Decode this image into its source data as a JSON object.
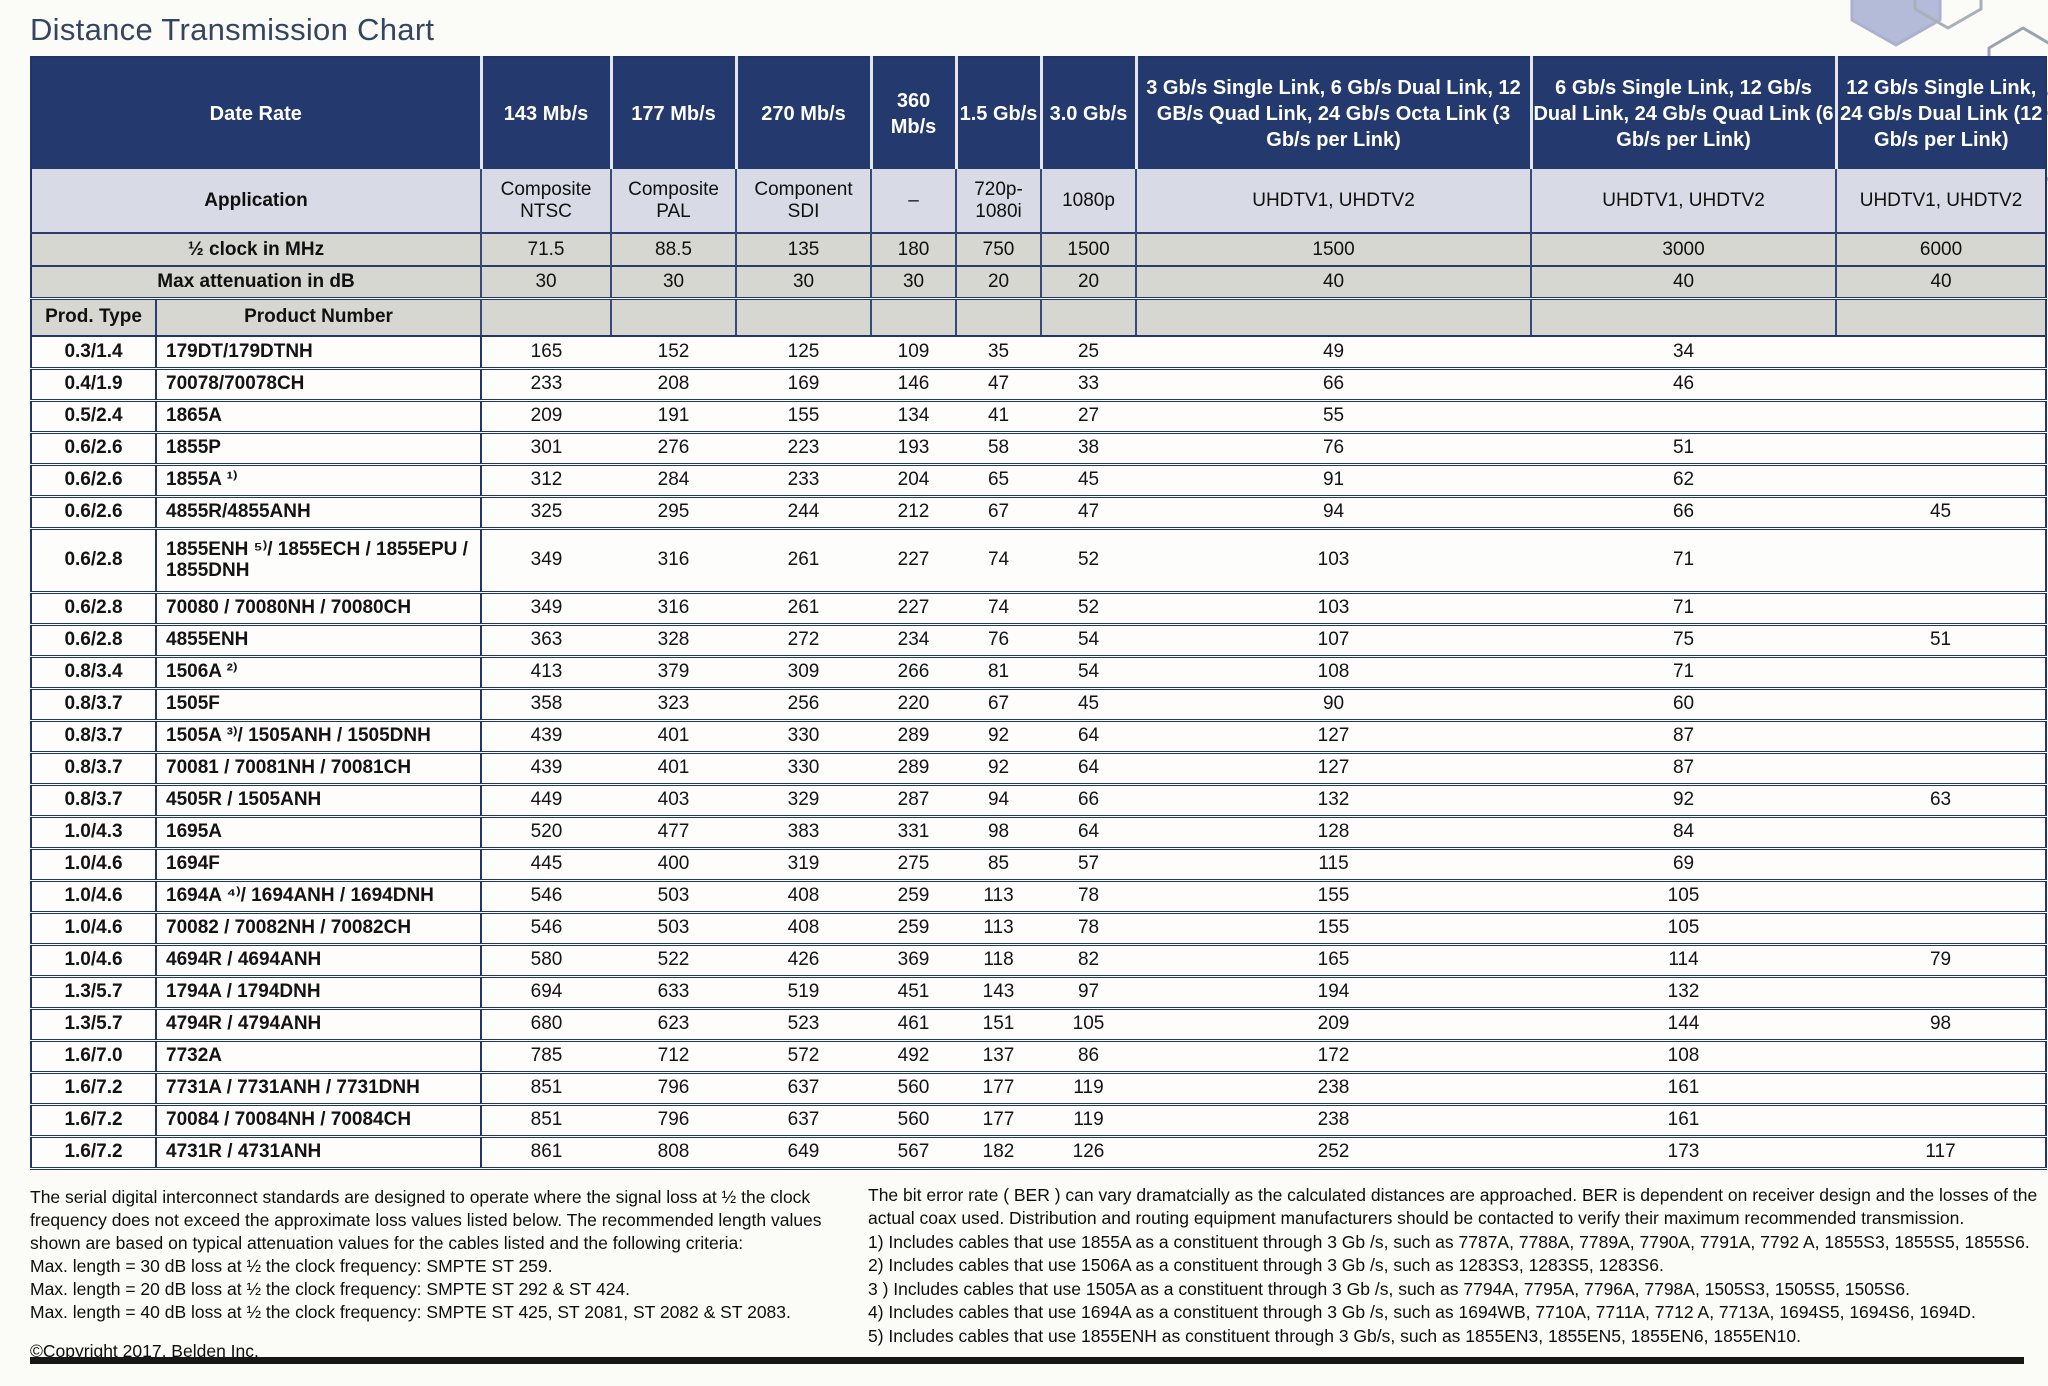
{
  "title": "Distance Transmission Chart",
  "table": {
    "header": {
      "date_rate_label": "Date Rate",
      "application_label": "Application",
      "half_clock_label": "½ clock in MHz",
      "max_attenuation_label": "Max attenuation in dB",
      "prod_type_label": "Prod. Type",
      "product_number_label": "Product Number",
      "rate_cols": [
        "143 Mb/s",
        "177 Mb/s",
        "270 Mb/s",
        "360 Mb/s",
        "1.5 Gb/s",
        "3.0 Gb/s",
        "3 Gb/s Single Link, 6 Gb/s Dual Link, 12 GB/s Quad Link, 24 Gb/s Octa Link (3 Gb/s per Link)",
        "6 Gb/s Single Link, 12 Gb/s Dual Link, 24 Gb/s Quad Link (6 Gb/s per Link)",
        "12 Gb/s Single Link, 24 Gb/s Dual Link (12 Gb/s per Link)"
      ],
      "applications": [
        "Composite NTSC",
        "Composite PAL",
        "Component SDI",
        "–",
        "720p-1080i",
        "1080p",
        "UHDTV1, UHDTV2",
        "UHDTV1, UHDTV2",
        "UHDTV1, UHDTV2"
      ],
      "half_clock": [
        "71.5",
        "88.5",
        "135",
        "180",
        "750",
        "1500",
        "1500",
        "3000",
        "6000"
      ],
      "max_attenuation": [
        "30",
        "30",
        "30",
        "30",
        "20",
        "20",
        "40",
        "40",
        "40"
      ]
    },
    "rows": [
      {
        "type": "0.3/1.4",
        "product": "179DT/179DTNH",
        "values": [
          "165",
          "152",
          "125",
          "109",
          "35",
          "25",
          "49",
          "34",
          ""
        ]
      },
      {
        "type": "0.4/1.9",
        "product": "70078/70078CH",
        "values": [
          "233",
          "208",
          "169",
          "146",
          "47",
          "33",
          "66",
          "46",
          ""
        ]
      },
      {
        "type": "0.5/2.4",
        "product": "1865A",
        "values": [
          "209",
          "191",
          "155",
          "134",
          "41",
          "27",
          "55",
          "",
          ""
        ]
      },
      {
        "type": "0.6/2.6",
        "product": "1855P",
        "values": [
          "301",
          "276",
          "223",
          "193",
          "58",
          "38",
          "76",
          "51",
          ""
        ]
      },
      {
        "type": "0.6/2.6",
        "product": "1855A ¹⁾",
        "values": [
          "312",
          "284",
          "233",
          "204",
          "65",
          "45",
          "91",
          "62",
          ""
        ]
      },
      {
        "type": "0.6/2.6",
        "product": "4855R/4855ANH",
        "values": [
          "325",
          "295",
          "244",
          "212",
          "67",
          "47",
          "94",
          "66",
          "45"
        ]
      },
      {
        "type": "0.6/2.8",
        "product": "1855ENH ⁵⁾/ 1855ECH / 1855EPU / 1855DNH",
        "tall": true,
        "values": [
          "349",
          "316",
          "261",
          "227",
          "74",
          "52",
          "103",
          "71",
          ""
        ]
      },
      {
        "type": "0.6/2.8",
        "product": "70080 / 70080NH / 70080CH",
        "values": [
          "349",
          "316",
          "261",
          "227",
          "74",
          "52",
          "103",
          "71",
          ""
        ]
      },
      {
        "type": "0.6/2.8",
        "product": "4855ENH",
        "values": [
          "363",
          "328",
          "272",
          "234",
          "76",
          "54",
          "107",
          "75",
          "51"
        ]
      },
      {
        "type": "0.8/3.4",
        "product": "1506A ²⁾",
        "values": [
          "413",
          "379",
          "309",
          "266",
          "81",
          "54",
          "108",
          "71",
          ""
        ]
      },
      {
        "type": "0.8/3.7",
        "product": "1505F",
        "values": [
          "358",
          "323",
          "256",
          "220",
          "67",
          "45",
          "90",
          "60",
          ""
        ]
      },
      {
        "type": "0.8/3.7",
        "product": "1505A ³⁾/ 1505ANH / 1505DNH",
        "values": [
          "439",
          "401",
          "330",
          "289",
          "92",
          "64",
          "127",
          "87",
          ""
        ]
      },
      {
        "type": "0.8/3.7",
        "product": "70081 / 70081NH / 70081CH",
        "values": [
          "439",
          "401",
          "330",
          "289",
          "92",
          "64",
          "127",
          "87",
          ""
        ]
      },
      {
        "type": "0.8/3.7",
        "product": "4505R / 1505ANH",
        "values": [
          "449",
          "403",
          "329",
          "287",
          "94",
          "66",
          "132",
          "92",
          "63"
        ]
      },
      {
        "type": "1.0/4.3",
        "product": "1695A",
        "values": [
          "520",
          "477",
          "383",
          "331",
          "98",
          "64",
          "128",
          "84",
          ""
        ]
      },
      {
        "type": "1.0/4.6",
        "product": "1694F",
        "values": [
          "445",
          "400",
          "319",
          "275",
          "85",
          "57",
          "115",
          "69",
          ""
        ]
      },
      {
        "type": "1.0/4.6",
        "product": "1694A ⁴⁾/ 1694ANH / 1694DNH",
        "values": [
          "546",
          "503",
          "408",
          "259",
          "113",
          "78",
          "155",
          "105",
          ""
        ]
      },
      {
        "type": "1.0/4.6",
        "product": "70082 / 70082NH / 70082CH",
        "values": [
          "546",
          "503",
          "408",
          "259",
          "113",
          "78",
          "155",
          "105",
          ""
        ]
      },
      {
        "type": "1.0/4.6",
        "product": "4694R / 4694ANH",
        "values": [
          "580",
          "522",
          "426",
          "369",
          "118",
          "82",
          "165",
          "114",
          "79"
        ]
      },
      {
        "type": "1.3/5.7",
        "product": "1794A / 1794DNH",
        "values": [
          "694",
          "633",
          "519",
          "451",
          "143",
          "97",
          "194",
          "132",
          ""
        ]
      },
      {
        "type": "1.3/5.7",
        "product": "4794R / 4794ANH",
        "values": [
          "680",
          "623",
          "523",
          "461",
          "151",
          "105",
          "209",
          "144",
          "98"
        ]
      },
      {
        "type": "1.6/7.0",
        "product": "7732A",
        "values": [
          "785",
          "712",
          "572",
          "492",
          "137",
          "86",
          "172",
          "108",
          ""
        ]
      },
      {
        "type": "1.6/7.2",
        "product": "7731A / 7731ANH / 7731DNH",
        "values": [
          "851",
          "796",
          "637",
          "560",
          "177",
          "119",
          "238",
          "161",
          ""
        ]
      },
      {
        "type": "1.6/7.2",
        "product": "70084 / 70084NH / 70084CH",
        "values": [
          "851",
          "796",
          "637",
          "560",
          "177",
          "119",
          "238",
          "161",
          ""
        ]
      },
      {
        "type": "1.6/7.2",
        "product": "4731R / 4731ANH",
        "values": [
          "861",
          "808",
          "649",
          "567",
          "182",
          "126",
          "252",
          "173",
          "117"
        ]
      }
    ]
  },
  "footer": {
    "left": {
      "paragraph": "The serial digital interconnect standards are designed to operate where the signal loss at ½ the clock frequency does not exceed the approximate loss values listed below. The recommended length values shown are based on typical attenuation values for the cables listed and the following criteria:",
      "lines": [
        "Max. length = 30 dB loss at ½ the clock frequency: SMPTE ST 259.",
        "Max. length = 20 dB loss at ½ the clock frequency: SMPTE ST 292 & ST 424.",
        "Max. length = 40 dB loss at ½ the clock frequency: SMPTE ST 425, ST 2081, ST 2082 & ST 2083."
      ],
      "copyright": "©Copyright 2017, Belden Inc."
    },
    "right": {
      "paragraph": "The bit error rate ( BER ) can vary dramatcially as the calculated distances are approached. BER is dependent on receiver design and the losses of the actual coax used. Distribution and routing equipment manufacturers should be contacted to verify their maximum recommended transmission.",
      "notes": [
        "1) Includes cables that use 1855A as a constituent through 3 Gb /s, such as 7787A, 7788A, 7789A, 7790A, 7791A, 7792 A, 1855S3, 1855S5, 1855S6.",
        "2) Includes cables that use 1506A as a constituent through 3 Gb /s, such as 1283S3, 1283S5, 1283S6.",
        "3 ) Includes cables that use 1505A as a constituent through 3 Gb /s, such as 7794A, 7795A, 7796A, 7798A, 1505S3, 1505S5, 1505S6.",
        "4) Includes cables that use 1694A as a constituent through 3 Gb /s, such as 1694WB, 7710A, 7711A, 7712 A, 7713A, 1694S5, 1694S6, 1694D.",
        "5) Includes cables that use 1855ENH as constituent through 3 Gb/s, such as 1855EN3, 1855EN5, 1855EN6, 1855EN10."
      ]
    }
  },
  "colors": {
    "header_navy": "#24396e",
    "application_row": "#d8dae5",
    "gray_row": "#d6d7d1",
    "rule_navy": "#23346a",
    "hexagon_fill": "#b4bbd8"
  }
}
